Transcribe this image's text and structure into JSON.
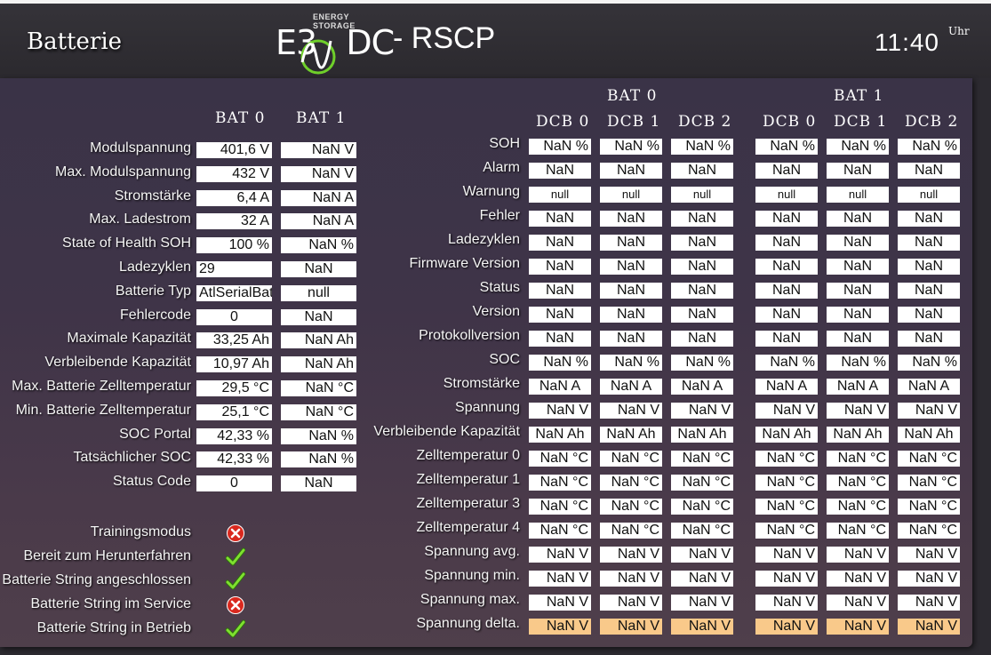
{
  "header": {
    "page_title": "Batterie",
    "logo_tagline": "ENERGY STORAGE",
    "logo_text": "E3/DC",
    "app_title": "- RSCP",
    "time": "11:40",
    "time_unit": "Uhr"
  },
  "colors": {
    "accent_ok": "#6fcf2a",
    "accent_error": "#d9281e",
    "highlight": "#f9c98a"
  },
  "battery_table": {
    "columns": [
      "BAT 0",
      "BAT 1"
    ],
    "rows": [
      {
        "label": "Modulspannung",
        "values": [
          "401,6 V",
          "NaN V"
        ]
      },
      {
        "label": "Max. Modulspannung",
        "values": [
          "432 V",
          "NaN V"
        ]
      },
      {
        "label": "Stromstärke",
        "values": [
          "6,4 A",
          "NaN A"
        ]
      },
      {
        "label": "Max. Ladestrom",
        "values": [
          "32 A",
          "NaN A"
        ]
      },
      {
        "label": "State of Health SOH",
        "values": [
          "100 %",
          "NaN %"
        ]
      },
      {
        "label": "Ladezyklen",
        "values": [
          "29",
          "NaN"
        ]
      },
      {
        "label": "Batterie Typ",
        "values": [
          "AtlSerialBat",
          "null"
        ]
      },
      {
        "label": "Fehlercode",
        "values": [
          "0",
          "NaN"
        ]
      },
      {
        "label": "Maximale Kapazität",
        "values": [
          "33,25 Ah",
          "NaN Ah"
        ]
      },
      {
        "label": "Verbleibende Kapazität",
        "values": [
          "10,97 Ah",
          "NaN Ah"
        ]
      },
      {
        "label": "Max. Batterie Zelltemperatur",
        "values": [
          "29,5 °C",
          "NaN °C"
        ]
      },
      {
        "label": "Min. Batterie Zelltemperatur",
        "values": [
          "25,1 °C",
          "NaN °C"
        ]
      },
      {
        "label": "SOC Portal",
        "values": [
          "42,33 %",
          "NaN %"
        ]
      },
      {
        "label": "Tatsächlicher SOC",
        "values": [
          "42,33 %",
          "NaN %"
        ]
      },
      {
        "label": "Status Code",
        "values": [
          "0",
          "NaN"
        ]
      }
    ]
  },
  "status_flags": [
    {
      "label": "Trainingsmodus",
      "icon": "error-icon"
    },
    {
      "label": "Bereit zum Herunterfahren",
      "icon": "check-icon"
    },
    {
      "label": "Batterie String angeschlossen",
      "icon": "check-icon"
    },
    {
      "label": "Batterie String im Service",
      "icon": "error-icon"
    },
    {
      "label": "Batterie String in Betrieb",
      "icon": "check-icon"
    }
  ],
  "dcb_table": {
    "groups": [
      "BAT 0",
      "BAT 1"
    ],
    "columns": [
      "DCB 0",
      "DCB 1",
      "DCB 2",
      "DCB 0",
      "DCB 1",
      "DCB 2"
    ],
    "rows": [
      {
        "label": "SOH",
        "value": "NaN %"
      },
      {
        "label": "Alarm",
        "value": "NaN"
      },
      {
        "label": "Warnung",
        "value": "null"
      },
      {
        "label": "Fehler",
        "value": "NaN"
      },
      {
        "label": "Ladezyklen",
        "value": "NaN"
      },
      {
        "label": "Firmware Version",
        "value": "NaN"
      },
      {
        "label": "Status",
        "value": "NaN"
      },
      {
        "label": "Version",
        "value": "NaN"
      },
      {
        "label": "Protokollversion",
        "value": "NaN"
      },
      {
        "label": "SOC",
        "value": "NaN %"
      },
      {
        "label": "Stromstärke",
        "value": "NaN A"
      },
      {
        "label": "Spannung",
        "value": "NaN V"
      },
      {
        "label": "Verbleibende Kapazität",
        "value": "NaN Ah"
      },
      {
        "label": "Zelltemperatur 0",
        "value": "NaN °C"
      },
      {
        "label": "Zelltemperatur 1",
        "value": "NaN °C"
      },
      {
        "label": "Zelltemperatur 3",
        "value": "NaN °C"
      },
      {
        "label": "Zelltemperatur 4",
        "value": "NaN °C"
      },
      {
        "label": "Spannung avg.",
        "value": "NaN V"
      },
      {
        "label": "Spannung min.",
        "value": "NaN V"
      },
      {
        "label": "Spannung max.",
        "value": "NaN V"
      },
      {
        "label": "Spannung delta.",
        "value": "NaN V",
        "highlight": true
      }
    ]
  }
}
